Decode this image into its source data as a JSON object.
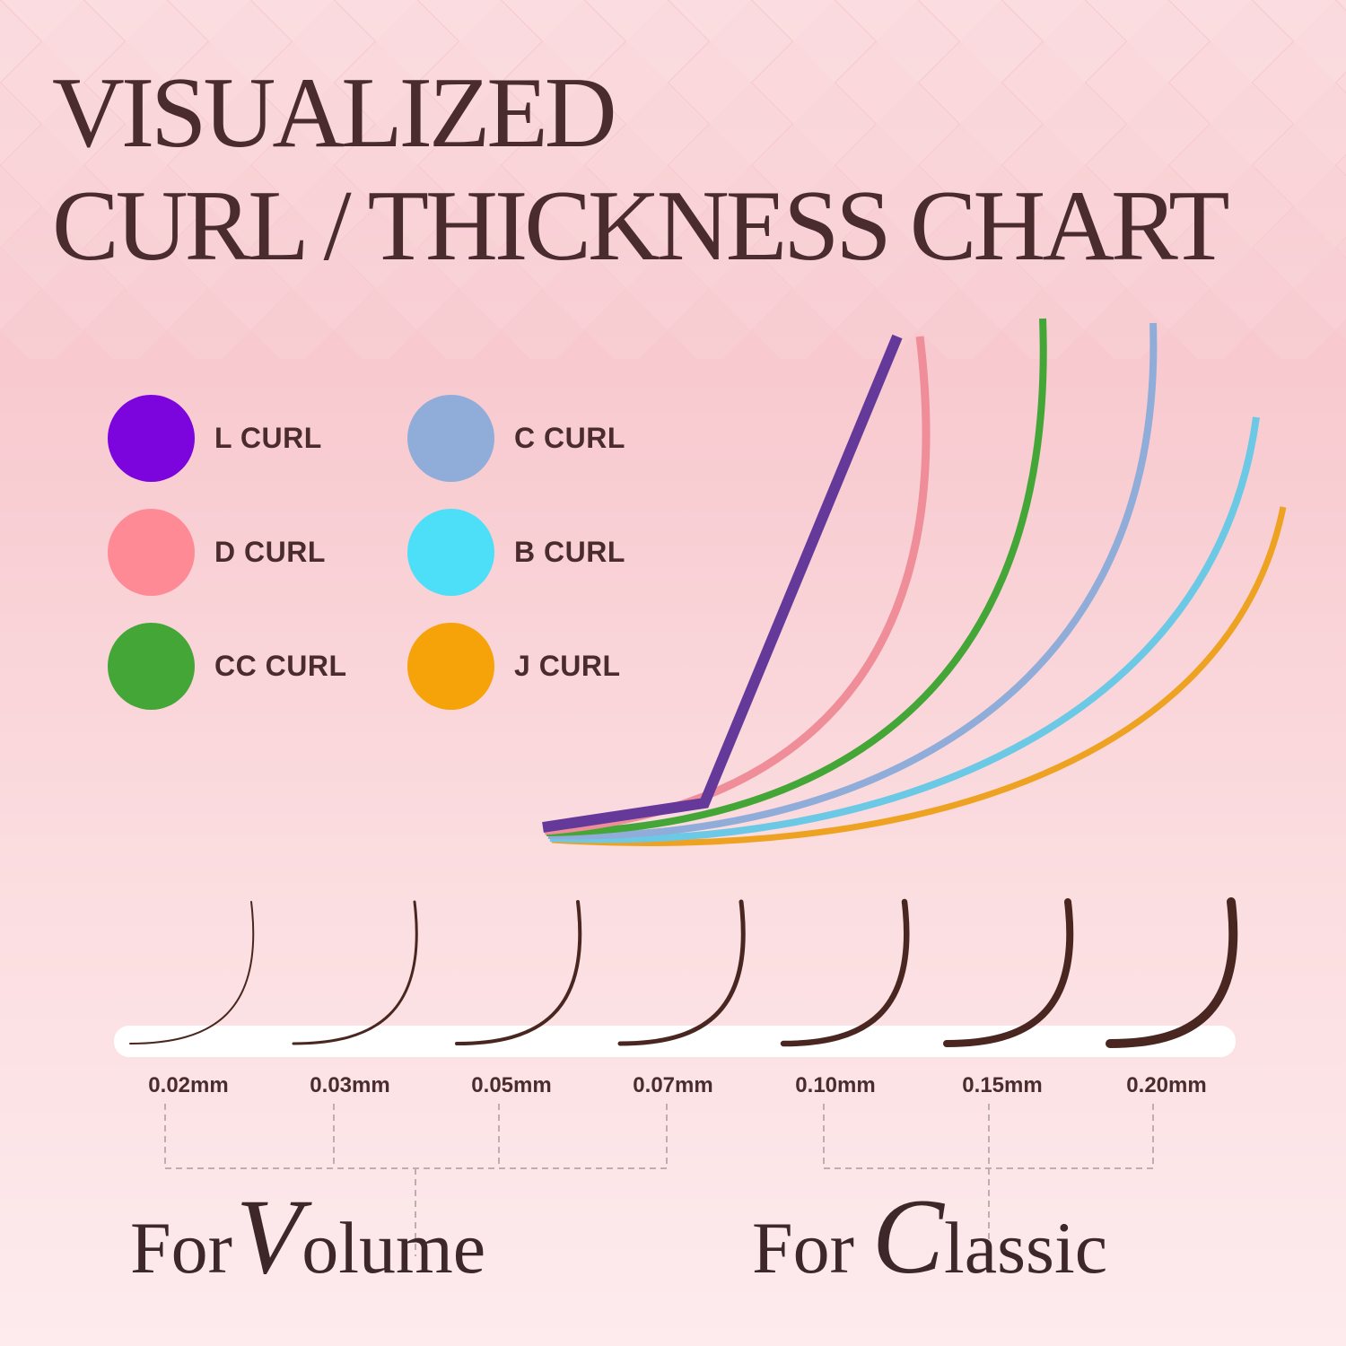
{
  "title": {
    "line1": "VISUALIZED",
    "line2": "CURL / THICKNESS CHART"
  },
  "colors": {
    "text": "#4a2c2e",
    "background": "#f8cdd2",
    "lash": "#4a2620"
  },
  "legend": [
    {
      "label": "L CURL",
      "color": "#7b05dc"
    },
    {
      "label": "C CURL",
      "color": "#8fadd8"
    },
    {
      "label": "D CURL",
      "color": "#fe8a96"
    },
    {
      "label": "B CURL",
      "color": "#4ddff8"
    },
    {
      "label": "CC CURL",
      "color": "#44a637"
    },
    {
      "label": "J CURL",
      "color": "#f5a308"
    }
  ],
  "curl_lines": [
    {
      "name": "L CURL",
      "color": "#64399a"
    },
    {
      "name": "D CURL",
      "color": "#ef8d98"
    },
    {
      "name": "CC CURL",
      "color": "#44a637"
    },
    {
      "name": "C CURL",
      "color": "#8fadd8"
    },
    {
      "name": "B CURL",
      "color": "#6cc9e6"
    },
    {
      "name": "J CURL",
      "color": "#eea222"
    }
  ],
  "thickness": [
    "0.02mm",
    "0.03mm",
    "0.05mm",
    "0.07mm",
    "0.10mm",
    "0.15mm",
    "0.20mm"
  ],
  "groups": [
    {
      "for": "For",
      "word_initial": "V",
      "word_rest": "olume"
    },
    {
      "for": "For",
      "word_initial": "C",
      "word_rest": "lassic"
    }
  ]
}
